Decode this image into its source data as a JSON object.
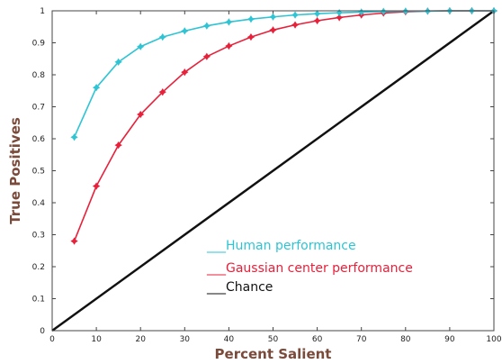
{
  "chart_data": {
    "type": "line",
    "title": "",
    "xlabel": "Percent Salient",
    "ylabel": "True Positives",
    "xlim": [
      0,
      100
    ],
    "ylim": [
      0,
      1
    ],
    "x_ticks": [
      0,
      10,
      20,
      30,
      40,
      50,
      60,
      70,
      80,
      90,
      100
    ],
    "y_ticks": [
      0,
      0.1,
      0.2,
      0.3,
      0.4,
      0.5,
      0.6,
      0.7,
      0.8,
      0.9,
      1
    ],
    "grid": false,
    "legend_position": "bottom-right",
    "series": [
      {
        "name": "Human performance",
        "legend_label": "___Human performance",
        "color": "#2ec4d4",
        "marker": "star",
        "x": [
          5,
          10,
          15,
          20,
          25,
          30,
          35,
          40,
          45,
          50,
          55,
          60,
          65,
          70,
          75,
          80,
          85,
          90,
          95,
          100
        ],
        "y": [
          0.605,
          0.76,
          0.84,
          0.888,
          0.918,
          0.937,
          0.953,
          0.965,
          0.974,
          0.981,
          0.987,
          0.991,
          0.994,
          0.996,
          0.998,
          0.999,
          0.999,
          1.0,
          1.0,
          1.0
        ]
      },
      {
        "name": "Gaussian center performance",
        "legend_label": "___Gaussian center performance",
        "color": "#e8203a",
        "marker": "star",
        "x": [
          5,
          10,
          15,
          20,
          25,
          30,
          35,
          40,
          45,
          50,
          55,
          60,
          65,
          70,
          75,
          80,
          85,
          90,
          95,
          100
        ],
        "y": [
          0.28,
          0.452,
          0.58,
          0.676,
          0.746,
          0.808,
          0.857,
          0.89,
          0.918,
          0.94,
          0.956,
          0.969,
          0.979,
          0.987,
          0.993,
          0.997,
          0.999,
          1.0,
          1.0,
          1.0
        ]
      },
      {
        "name": "Chance",
        "legend_label": "___Chance",
        "color": "#111111",
        "marker": "none",
        "x": [
          0,
          100
        ],
        "y": [
          0,
          1
        ]
      }
    ]
  }
}
